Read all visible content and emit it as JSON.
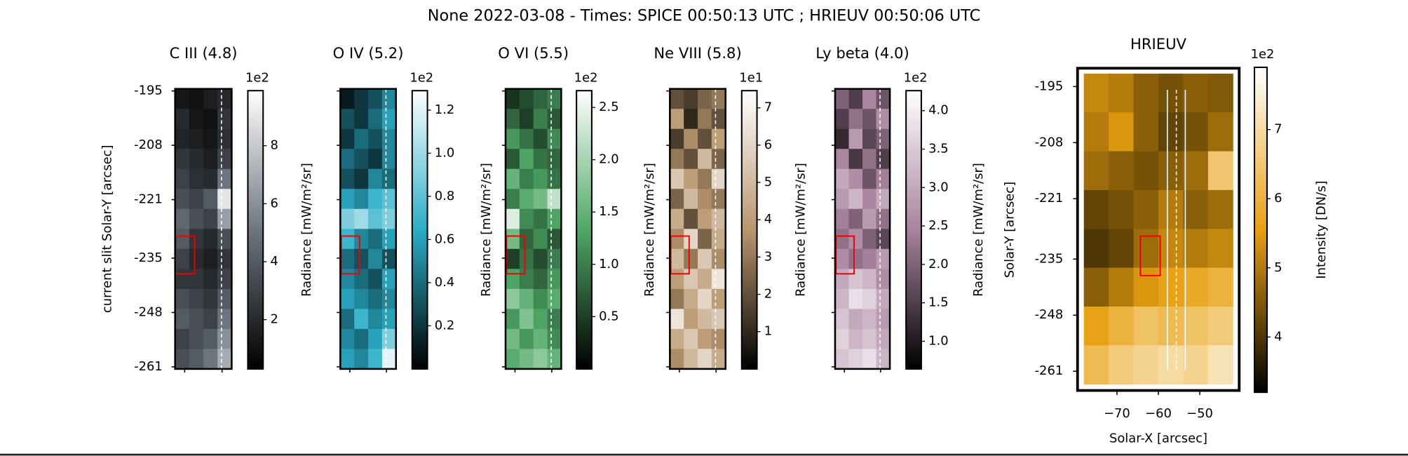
{
  "title": "None 2022-03-08 - Times: SPICE 00:50:13 UTC ; HRIEUV 00:50:06 UTC",
  "chart_data": [
    {
      "type": "heatmap",
      "title": "C III (4.8)",
      "ylabel": "current slit Solar-Y [arcsec]",
      "ylim": [
        -261.5,
        -194.5
      ],
      "yticks": [
        -195,
        -208,
        -221,
        -235,
        -248,
        -261
      ],
      "z": [
        [
          1.2,
          1.0,
          1.5,
          2.0
        ],
        [
          2.0,
          1.2,
          1.0,
          2.5
        ],
        [
          1.8,
          1.5,
          1.2,
          2.2
        ],
        [
          2.5,
          2.0,
          1.5,
          3.0
        ],
        [
          3.0,
          2.2,
          2.0,
          5.0
        ],
        [
          3.5,
          3.0,
          4.0,
          9.0
        ],
        [
          4.5,
          3.5,
          3.0,
          6.5
        ],
        [
          4.0,
          2.5,
          2.0,
          3.5
        ],
        [
          3.0,
          2.0,
          1.5,
          2.5
        ],
        [
          2.5,
          2.5,
          2.0,
          3.0
        ],
        [
          3.5,
          3.0,
          2.5,
          4.0
        ],
        [
          4.0,
          3.5,
          3.0,
          5.0
        ],
        [
          3.0,
          3.5,
          4.0,
          6.0
        ],
        [
          3.5,
          4.0,
          5.0,
          7.0
        ]
      ],
      "colorbar": {
        "label": "Radiance [mW/m²/sr]",
        "offset": "1e2",
        "lim": [
          0.3,
          9.9
        ],
        "ticks": [
          2,
          4,
          6,
          8
        ],
        "colors": [
          "#000000",
          "#6e7680",
          "#ffffff"
        ]
      }
    },
    {
      "type": "heatmap",
      "title": "O IV (5.2)",
      "ylim": [
        -261.5,
        -194.5
      ],
      "z": [
        [
          0.1,
          0.2,
          0.3,
          0.5
        ],
        [
          0.3,
          0.2,
          0.4,
          0.6
        ],
        [
          0.2,
          0.4,
          0.3,
          0.5
        ],
        [
          0.4,
          0.3,
          0.2,
          0.5
        ],
        [
          0.3,
          0.2,
          0.5,
          0.4
        ],
        [
          0.6,
          0.5,
          0.7,
          0.8
        ],
        [
          0.9,
          1.0,
          0.8,
          0.9
        ],
        [
          0.7,
          0.5,
          0.4,
          0.6
        ],
        [
          0.4,
          0.3,
          0.5,
          0.3
        ],
        [
          0.5,
          0.4,
          0.3,
          0.6
        ],
        [
          0.6,
          0.5,
          0.4,
          0.5
        ],
        [
          0.4,
          0.7,
          0.5,
          0.6
        ],
        [
          0.5,
          0.4,
          0.6,
          0.9
        ],
        [
          0.6,
          0.5,
          0.7,
          1.2
        ]
      ],
      "colorbar": {
        "label": "Radiance [mW/m²/sr]",
        "offset": "1e2",
        "lim": [
          0,
          1.29
        ],
        "ticks": [
          0.2,
          0.4,
          0.6,
          0.8,
          {
            "value": 1,
            "label": "1.0"
          },
          1.2
        ],
        "colors": [
          "#000000",
          "#2aaec8",
          "#ffffff"
        ]
      }
    },
    {
      "type": "heatmap",
      "title": "O VI (5.5)",
      "ylim": [
        -261.5,
        -194.5
      ],
      "z": [
        [
          0.4,
          0.6,
          0.8,
          1.0
        ],
        [
          0.8,
          0.5,
          1.0,
          0.7
        ],
        [
          1.2,
          0.9,
          0.6,
          1.1
        ],
        [
          0.7,
          1.3,
          0.9,
          0.8
        ],
        [
          1.5,
          1.0,
          1.2,
          0.9
        ],
        [
          1.0,
          1.4,
          1.6,
          2.2
        ],
        [
          2.4,
          1.1,
          0.9,
          1.3
        ],
        [
          1.6,
          0.8,
          1.1,
          0.7
        ],
        [
          0.5,
          0.9,
          0.6,
          1.0
        ],
        [
          1.3,
          1.0,
          0.8,
          1.2
        ],
        [
          1.8,
          1.5,
          1.1,
          1.4
        ],
        [
          1.2,
          1.7,
          1.3,
          1.0
        ],
        [
          1.6,
          1.2,
          1.5,
          1.1
        ],
        [
          1.4,
          1.6,
          1.8,
          1.5
        ]
      ],
      "colorbar": {
        "label": "Radiance [mW/m²/sr]",
        "offset": "1e2",
        "lim": [
          0,
          2.66
        ],
        "ticks": [
          0.5,
          {
            "value": 1,
            "label": "1.0"
          },
          1.5,
          {
            "value": 2,
            "label": "2.0"
          },
          2.5
        ],
        "colors": [
          "#000000",
          "#4fa866",
          "#ffffff"
        ]
      }
    },
    {
      "type": "heatmap",
      "title": "Ne VIII (5.8)",
      "ylim": [
        -261.5,
        -194.5
      ],
      "z": [
        [
          2.0,
          1.5,
          2.5,
          3.0
        ],
        [
          4.0,
          1.0,
          3.0,
          2.0
        ],
        [
          1.5,
          3.5,
          2.0,
          4.0
        ],
        [
          3.0,
          2.0,
          5.0,
          2.5
        ],
        [
          5.5,
          4.0,
          3.0,
          6.0
        ],
        [
          2.5,
          5.0,
          3.5,
          3.0
        ],
        [
          4.5,
          2.0,
          4.0,
          5.0
        ],
        [
          3.5,
          6.0,
          2.5,
          4.5
        ],
        [
          5.0,
          3.0,
          5.5,
          3.5
        ],
        [
          4.0,
          5.5,
          4.5,
          6.5
        ],
        [
          3.0,
          4.5,
          6.0,
          4.0
        ],
        [
          6.5,
          4.0,
          5.0,
          5.5
        ],
        [
          4.5,
          5.5,
          4.0,
          3.5
        ],
        [
          3.5,
          5.0,
          6.0,
          4.5
        ]
      ],
      "colorbar": {
        "label": "Radiance [mW/m²/sr]",
        "offset": "1e1",
        "lim": [
          0,
          7.46
        ],
        "ticks": [
          1,
          2,
          3,
          4,
          5,
          6,
          7
        ],
        "colors": [
          "#000000",
          "#b8966e",
          "#ffffff"
        ]
      }
    },
    {
      "type": "heatmap",
      "title": "Ly beta (4.0)",
      "ylim": [
        -261.5,
        -194.5
      ],
      "z": [
        [
          2.0,
          1.5,
          2.5,
          1.8
        ],
        [
          1.5,
          2.2,
          1.8,
          2.6
        ],
        [
          1.2,
          2.8,
          1.6,
          2.0
        ],
        [
          2.5,
          1.4,
          2.2,
          1.5
        ],
        [
          3.0,
          2.6,
          1.8,
          2.4
        ],
        [
          2.8,
          3.2,
          2.5,
          3.0
        ],
        [
          2.4,
          2.0,
          2.8,
          2.2
        ],
        [
          2.2,
          2.6,
          2.0,
          1.6
        ],
        [
          2.6,
          2.2,
          2.4,
          2.8
        ],
        [
          3.0,
          3.4,
          3.2,
          2.6
        ],
        [
          3.2,
          3.8,
          3.6,
          3.0
        ],
        [
          3.4,
          3.0,
          3.2,
          2.8
        ],
        [
          3.6,
          3.2,
          3.4,
          3.0
        ],
        [
          3.4,
          3.6,
          3.8,
          3.2
        ]
      ],
      "colorbar": {
        "label": "Radiance [mW/m²/sr]",
        "offset": "1e2",
        "lim": [
          0.64,
          4.26
        ],
        "ticks": [
          {
            "value": 1,
            "label": "1.0"
          },
          1.5,
          {
            "value": 2,
            "label": "2.0"
          },
          2.5,
          {
            "value": 3,
            "label": "3.0"
          },
          3.5,
          {
            "value": 4,
            "label": "4.0"
          }
        ],
        "colors": [
          "#000000",
          "#a8839e",
          "#ffffff"
        ]
      }
    },
    {
      "type": "image",
      "title": "HRIEUV",
      "xlabel": "Solar-X [arcsec]",
      "ylabel": "Solar-Y [arcsec]",
      "xlim": [
        -78,
        -42
      ],
      "xticks": [
        {
          "value": -70,
          "label": "−70"
        },
        {
          "value": -60,
          "label": "−60"
        },
        {
          "value": -50,
          "label": "−50"
        }
      ],
      "ylim": [
        -264,
        -192
      ],
      "yticks": [
        -195,
        -208,
        -221,
        -235,
        -248,
        -261
      ],
      "z": [
        [
          5.2,
          5.0,
          4.6,
          4.4,
          4.6,
          4.5
        ],
        [
          5.0,
          5.4,
          4.6,
          4.2,
          4.4,
          4.8
        ],
        [
          4.8,
          4.6,
          4.4,
          4.6,
          4.8,
          6.5
        ],
        [
          4.2,
          4.4,
          4.6,
          5.0,
          4.6,
          4.8
        ],
        [
          4.0,
          4.2,
          4.8,
          5.2,
          5.0,
          5.2
        ],
        [
          4.6,
          5.0,
          5.4,
          5.6,
          5.8,
          6.0
        ],
        [
          5.6,
          6.0,
          6.4,
          6.2,
          6.4,
          6.6
        ],
        [
          6.2,
          6.6,
          6.8,
          7.0,
          6.8,
          7.2
        ]
      ],
      "colorbar": {
        "label": "Intensity [DN/s]",
        "offset": "1e2",
        "lim": [
          3.2,
          7.9
        ],
        "ticks": [
          4,
          5,
          6,
          7
        ],
        "colors": [
          "#000000",
          "#e8a010",
          "#ffffff"
        ]
      }
    }
  ]
}
